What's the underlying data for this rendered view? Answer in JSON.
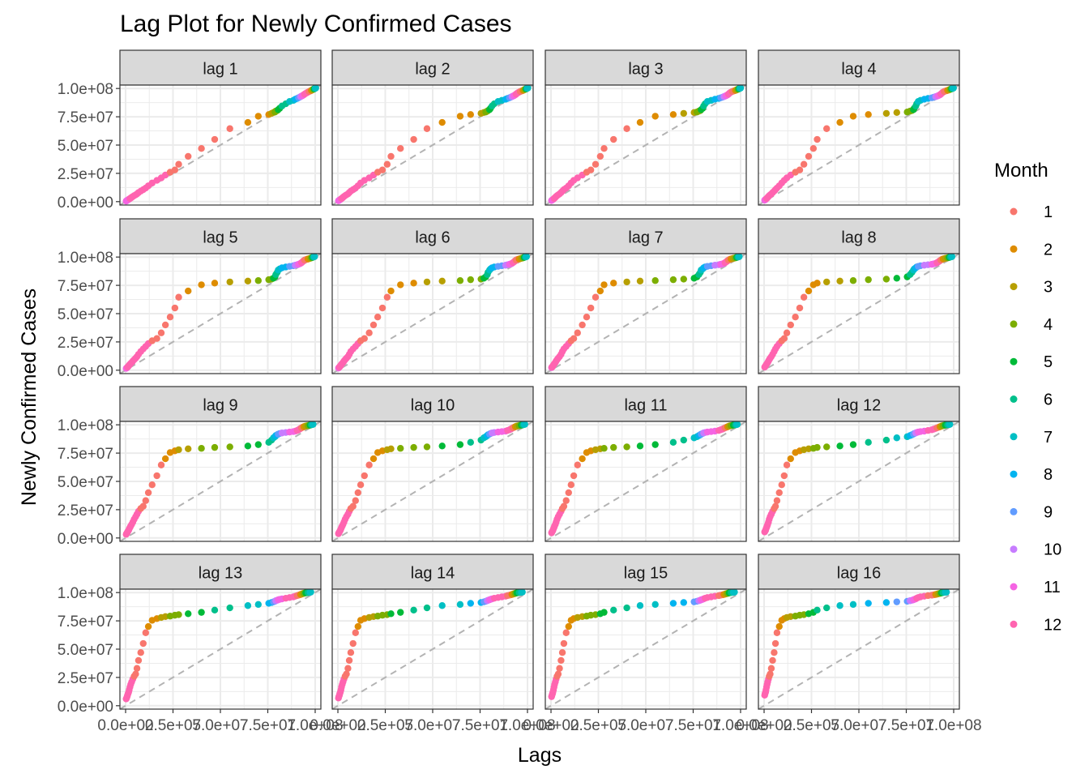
{
  "chart_data": {
    "type": "scatter",
    "title": "Lag Plot for Newly Confirmed Cases",
    "xlabel": "Lags",
    "ylabel": "Newly Confirmed Cases",
    "xlim": [
      0,
      100000000
    ],
    "ylim": [
      0,
      100000000
    ],
    "x_ticks": [
      "0.0e+00",
      "2.5e+07",
      "5.0e+07",
      "7.5e+07",
      "1.0e+08"
    ],
    "y_ticks": [
      "0.0e+00",
      "2.5e+07",
      "5.0e+07",
      "7.5e+07",
      "1.0e+08"
    ],
    "grid": true,
    "reference_line": "dashed identity line",
    "legend": {
      "title": "Month",
      "placement": "right",
      "entries": [
        {
          "label": "1",
          "color": "#F8766D"
        },
        {
          "label": "2",
          "color": "#DE8C00"
        },
        {
          "label": "3",
          "color": "#B79F00"
        },
        {
          "label": "4",
          "color": "#7CAE00"
        },
        {
          "label": "5",
          "color": "#00BA38"
        },
        {
          "label": "6",
          "color": "#00C08B"
        },
        {
          "label": "7",
          "color": "#00BFC4"
        },
        {
          "label": "8",
          "color": "#00B4F0"
        },
        {
          "label": "9",
          "color": "#619CFF"
        },
        {
          "label": "10",
          "color": "#C77CFF"
        },
        {
          "label": "11",
          "color": "#F564E3"
        },
        {
          "label": "12",
          "color": "#FF64B0"
        }
      ]
    },
    "panels": [
      "lag 1",
      "lag 2",
      "lag 3",
      "lag 4",
      "lag 5",
      "lag 6",
      "lag 7",
      "lag 8",
      "lag 9",
      "lag 10",
      "lag 11",
      "lag 12",
      "lag 13",
      "lag 14",
      "lag 15",
      "lag 16"
    ],
    "series_by_month": [
      {
        "month": 11,
        "values": [
          0.3,
          0.5,
          0.8,
          1.0,
          1.3,
          1.6,
          1.9,
          2.3
        ]
      },
      {
        "month": 12,
        "values": [
          2.7,
          3.2,
          3.8,
          4.5,
          5.3,
          6.0,
          6.8,
          8.0,
          9.3,
          10.6,
          12.0,
          14.0,
          16.5,
          18.8,
          21.0,
          23.5
        ]
      },
      {
        "month": 1,
        "values": [
          26.0,
          28.0,
          33.0,
          40.0,
          47.0,
          55.0,
          64.5
        ]
      },
      {
        "month": 2,
        "values": [
          70.0,
          75.5,
          77.0
        ]
      },
      {
        "month": 3,
        "values": [
          78.0,
          78.8
        ]
      },
      {
        "month": 4,
        "values": [
          79.2,
          80.0,
          80.5
        ]
      },
      {
        "month": 5,
        "values": [
          81.3,
          82.5
        ]
      },
      {
        "month": 6,
        "values": [
          84.5,
          86.5
        ]
      },
      {
        "month": 7,
        "values": [
          88.5,
          89.5
        ]
      },
      {
        "month": 8,
        "values": [
          90.5,
          91.2
        ]
      },
      {
        "month": 9,
        "values": [
          91.8,
          92.3
        ]
      },
      {
        "month": 10,
        "values": [
          92.8,
          93.2
        ]
      },
      {
        "month": 11,
        "values": [
          93.6,
          94.0,
          94.4
        ]
      },
      {
        "month": 12,
        "values": [
          95.0,
          95.6,
          96.2,
          96.8
        ]
      },
      {
        "month": 1,
        "values": [
          97.3,
          97.7,
          98.0
        ]
      },
      {
        "month": 2,
        "values": [
          98.3,
          98.6
        ]
      },
      {
        "month": 3,
        "values": [
          98.9,
          99.1
        ]
      },
      {
        "month": 4,
        "values": [
          99.3,
          99.5
        ]
      },
      {
        "month": 5,
        "values": [
          99.7,
          99.9
        ]
      },
      {
        "month": 6,
        "values": [
          100.0,
          100.2
        ]
      },
      {
        "month": 7,
        "values": [
          100.3,
          100.4
        ]
      }
    ],
    "value_unit": "millions of cases (values x 1e6)"
  }
}
